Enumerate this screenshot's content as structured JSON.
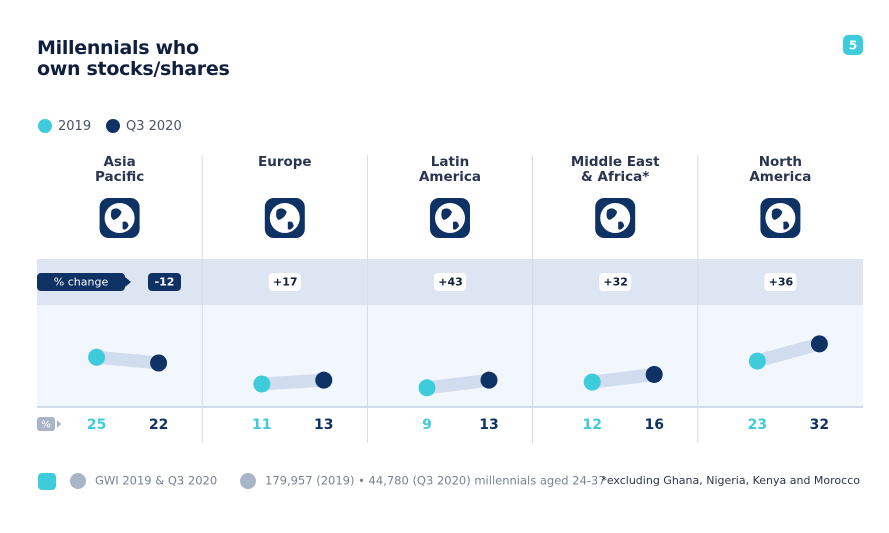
{
  "page_number": "5",
  "change_label": "% change",
  "pct_label": "%",
  "source": "GWI 2019 & Q3 2020",
  "sample": "179,957 (2019) • 44,780 (Q3 2020) millennials aged 24-37",
  "footnote": "*excluding Ghana, Nigeria, Kenya and Morocco",
  "chart_data": {
    "type": "dumbbell",
    "title": "Millennials who\nown stocks/shares",
    "categories": [
      "Asia\nPacific",
      "Europe",
      "Latin\nAmerica",
      "Middle East\n& Africa*",
      "North\nAmerica"
    ],
    "series": [
      {
        "name": "2019",
        "color": "#3ecbdb",
        "values": [
          25,
          11,
          9,
          12,
          23
        ]
      },
      {
        "name": "Q3 2020",
        "color": "#0f3264",
        "values": [
          22,
          13,
          13,
          16,
          32
        ]
      }
    ],
    "change": {
      "values": [
        -12,
        17,
        43,
        32,
        36
      ],
      "value_labels": [
        "-12",
        "+17",
        "+43",
        "+32",
        "+36"
      ]
    }
  }
}
